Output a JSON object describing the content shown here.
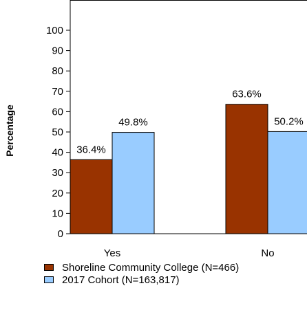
{
  "chart_data": {
    "type": "bar",
    "ylabel": "Percentage",
    "ylim": [
      0,
      100
    ],
    "yticks": [
      0,
      10,
      20,
      30,
      40,
      50,
      60,
      70,
      80,
      90,
      100
    ],
    "categories": [
      "Yes",
      "No"
    ],
    "series": [
      {
        "name": "Shoreline Community College (N=466)",
        "values": [
          36.4,
          63.6
        ],
        "labels": [
          "36.4%",
          "63.6%"
        ],
        "color": "#993300"
      },
      {
        "name": "2017 Cohort (N=163,817)",
        "values": [
          49.8,
          50.2
        ],
        "labels": [
          "49.8%",
          "50.2%"
        ],
        "color": "#99ccff"
      }
    ],
    "grid": false,
    "legend_position": "bottom"
  }
}
